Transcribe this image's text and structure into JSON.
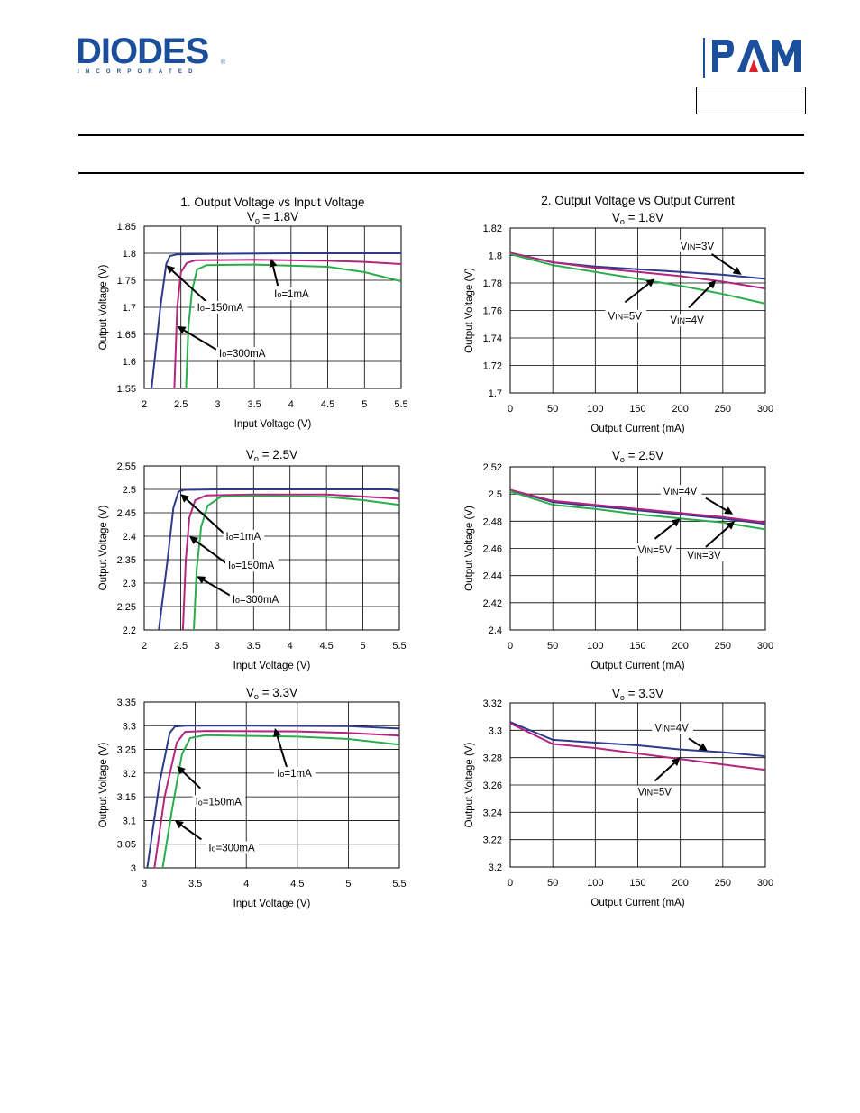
{
  "header": {
    "diodes_logo": "DIODES",
    "diodes_sub": "INCORPORATED",
    "pam_logo": "PAM"
  },
  "colors": {
    "blue": "#2e3a8c",
    "magenta": "#b5257e",
    "green": "#29ad4b",
    "grid": "#000000",
    "logo_blue": "#1b4e9b",
    "logo_red": "#e0202a"
  },
  "chart_data": [
    {
      "id": "c1",
      "type": "line",
      "title": "1. Output Voltage vs Input Voltage",
      "subtitle": "V",
      "subtitle_sub": "o",
      "subtitle_rest": "= 1.8V",
      "xlabel": "Input Voltage (V)",
      "ylabel": "Output Voltage (V)",
      "xlim": [
        2,
        5.5
      ],
      "ylim": [
        1.55,
        1.85
      ],
      "xticks": [
        "2",
        "2.5",
        "3",
        "3.5",
        "4",
        "4.5",
        "5",
        "5.5"
      ],
      "yticks": [
        "1.85",
        "1.8",
        "1.75",
        "1.7",
        "1.65",
        "1.6",
        "1.55"
      ],
      "grid": true,
      "series": [
        {
          "name": "Io=1mA",
          "color": "#2e3a8c",
          "points": [
            [
              2.1,
              1.55
            ],
            [
              2.22,
              1.7
            ],
            [
              2.3,
              1.78
            ],
            [
              2.35,
              1.795
            ],
            [
              2.45,
              1.798
            ],
            [
              3,
              1.799
            ],
            [
              4,
              1.8
            ],
            [
              5.5,
              1.8
            ]
          ]
        },
        {
          "name": "Io=150mA",
          "color": "#b5257e",
          "points": [
            [
              2.41,
              1.55
            ],
            [
              2.45,
              1.7
            ],
            [
              2.5,
              1.765
            ],
            [
              2.58,
              1.782
            ],
            [
              2.7,
              1.787
            ],
            [
              3.5,
              1.788
            ],
            [
              4.5,
              1.786
            ],
            [
              5,
              1.784
            ],
            [
              5.5,
              1.78
            ]
          ]
        },
        {
          "name": "Io=300mA",
          "color": "#29ad4b",
          "points": [
            [
              2.57,
              1.55
            ],
            [
              2.6,
              1.66
            ],
            [
              2.65,
              1.73
            ],
            [
              2.72,
              1.77
            ],
            [
              2.85,
              1.778
            ],
            [
              3.5,
              1.779
            ],
            [
              4.5,
              1.775
            ],
            [
              5,
              1.765
            ],
            [
              5.5,
              1.748
            ]
          ]
        }
      ],
      "annotations": [
        {
          "text": "Io=1mA",
          "x": 3.77,
          "y": 1.725,
          "ax": 3.82,
          "ay": 1.74,
          "hx": 3.73,
          "hy": 1.79
        },
        {
          "text": "Io=150mA",
          "x": 2.72,
          "y": 1.7,
          "ax": 2.85,
          "ay": 1.71,
          "hx": 2.3,
          "hy": 1.778
        },
        {
          "text": "Io=300mA",
          "x": 3.02,
          "y": 1.615,
          "ax": 2.98,
          "ay": 1.622,
          "hx": 2.45,
          "hy": 1.665
        }
      ]
    },
    {
      "id": "c2",
      "type": "line",
      "title": "2. Output Voltage vs Output Current",
      "subtitle": "V",
      "subtitle_sub": "o",
      "subtitle_rest": "= 1.8V",
      "xlabel": "Output Current (mA)",
      "ylabel": "Output Voltage (V)",
      "xlim": [
        0,
        300
      ],
      "ylim": [
        1.7,
        1.82
      ],
      "xticks": [
        "0",
        "50",
        "100",
        "150",
        "200",
        "250",
        "300"
      ],
      "yticks": [
        "1.82",
        "1.8",
        "1.78",
        "1.76",
        "1.74",
        "1.72",
        "1.7"
      ],
      "grid": true,
      "series": [
        {
          "name": "VIN=3V",
          "color": "#2e3a8c",
          "points": [
            [
              0,
              1.802
            ],
            [
              50,
              1.795
            ],
            [
              100,
              1.792
            ],
            [
              150,
              1.79
            ],
            [
              200,
              1.788
            ],
            [
              250,
              1.786
            ],
            [
              300,
              1.783
            ]
          ]
        },
        {
          "name": "VIN=4V",
          "color": "#b5257e",
          "points": [
            [
              0,
              1.802
            ],
            [
              50,
              1.795
            ],
            [
              100,
              1.791
            ],
            [
              150,
              1.788
            ],
            [
              200,
              1.785
            ],
            [
              250,
              1.781
            ],
            [
              300,
              1.776
            ]
          ]
        },
        {
          "name": "VIN=5V",
          "color": "#29ad4b",
          "points": [
            [
              0,
              1.801
            ],
            [
              50,
              1.793
            ],
            [
              100,
              1.788
            ],
            [
              150,
              1.783
            ],
            [
              200,
              1.778
            ],
            [
              250,
              1.772
            ],
            [
              300,
              1.765
            ]
          ]
        }
      ],
      "annotations": [
        {
          "text": "VIN=3V",
          "x": 200,
          "y": 1.807,
          "ax": 237,
          "ay": 1.801,
          "hx": 272,
          "hy": 1.786
        },
        {
          "text": "VIN=5V",
          "x": 115,
          "y": 1.756,
          "ax": 135,
          "ay": 1.766,
          "hx": 170,
          "hy": 1.783
        },
        {
          "text": "VIN=4V",
          "x": 188,
          "y": 1.753,
          "ax": 210,
          "ay": 1.762,
          "hx": 242,
          "hy": 1.782
        }
      ]
    },
    {
      "id": "c3",
      "type": "line",
      "title": "",
      "subtitle": "V",
      "subtitle_sub": "o",
      "subtitle_rest": "= 2.5V",
      "xlabel": "Input Voltage (V)",
      "ylabel": "Output Voltage (V)",
      "xlim": [
        2,
        5.5
      ],
      "ylim": [
        2.2,
        2.55
      ],
      "xticks": [
        "2",
        "2.5",
        "3",
        "3.5",
        "4",
        "4.5",
        "5",
        "5.5"
      ],
      "yticks": [
        "2.55",
        "2.5",
        "2.45",
        "2.4",
        "2.35",
        "2.3",
        "2.25",
        "2.2"
      ],
      "grid": true,
      "series": [
        {
          "name": "Io=1mA",
          "color": "#2e3a8c",
          "points": [
            [
              2.2,
              2.2
            ],
            [
              2.32,
              2.35
            ],
            [
              2.4,
              2.46
            ],
            [
              2.47,
              2.495
            ],
            [
              2.55,
              2.499
            ],
            [
              3,
              2.5
            ],
            [
              4,
              2.5
            ],
            [
              5.4,
              2.5
            ],
            [
              5.5,
              2.495
            ]
          ]
        },
        {
          "name": "Io=150mA",
          "color": "#b5257e",
          "points": [
            [
              2.53,
              2.2
            ],
            [
              2.57,
              2.35
            ],
            [
              2.62,
              2.44
            ],
            [
              2.7,
              2.477
            ],
            [
              2.85,
              2.487
            ],
            [
              3.5,
              2.489
            ],
            [
              4.5,
              2.489
            ],
            [
              5.5,
              2.48
            ]
          ]
        },
        {
          "name": "Io=300mA",
          "color": "#29ad4b",
          "points": [
            [
              2.68,
              2.2
            ],
            [
              2.72,
              2.33
            ],
            [
              2.78,
              2.42
            ],
            [
              2.87,
              2.465
            ],
            [
              3.05,
              2.484
            ],
            [
              3.5,
              2.486
            ],
            [
              4.5,
              2.484
            ],
            [
              5,
              2.477
            ],
            [
              5.5,
              2.467
            ]
          ]
        }
      ],
      "annotations": [
        {
          "text": "Io=1mA",
          "x": 3.12,
          "y": 2.4,
          "ax": 3.1,
          "ay": 2.405,
          "hx": 2.5,
          "hy": 2.49
        },
        {
          "text": "Io=150mA",
          "x": 3.15,
          "y": 2.338,
          "ax": 3.12,
          "ay": 2.343,
          "hx": 2.62,
          "hy": 2.4
        },
        {
          "text": "Io=300mA",
          "x": 3.21,
          "y": 2.265,
          "ax": 3.22,
          "ay": 2.27,
          "hx": 2.72,
          "hy": 2.315
        }
      ]
    },
    {
      "id": "c4",
      "type": "line",
      "title": "",
      "subtitle": "V",
      "subtitle_sub": "o",
      "subtitle_rest": "= 2.5V",
      "xlabel": "Output Current (mA)",
      "ylabel": "Output Voltage (V)",
      "xlim": [
        0,
        300
      ],
      "ylim": [
        2.4,
        2.52
      ],
      "xticks": [
        "0",
        "50",
        "100",
        "150",
        "200",
        "250",
        "300"
      ],
      "yticks": [
        "2.52",
        "2.5",
        "2.48",
        "2.46",
        "2.44",
        "2.42",
        "2.4"
      ],
      "grid": true,
      "series": [
        {
          "name": "VIN=3V",
          "color": "#2e3a8c",
          "points": [
            [
              0,
              2.503
            ],
            [
              50,
              2.494
            ],
            [
              100,
              2.491
            ],
            [
              150,
              2.488
            ],
            [
              200,
              2.485
            ],
            [
              250,
              2.482
            ],
            [
              300,
              2.478
            ]
          ]
        },
        {
          "name": "VIN=4V",
          "color": "#b5257e",
          "points": [
            [
              0,
              2.503
            ],
            [
              50,
              2.495
            ],
            [
              100,
              2.492
            ],
            [
              150,
              2.489
            ],
            [
              200,
              2.486
            ],
            [
              250,
              2.483
            ],
            [
              300,
              2.479
            ]
          ]
        },
        {
          "name": "VIN=5V",
          "color": "#29ad4b",
          "points": [
            [
              0,
              2.502
            ],
            [
              50,
              2.492
            ],
            [
              100,
              2.489
            ],
            [
              150,
              2.485
            ],
            [
              200,
              2.482
            ],
            [
              250,
              2.479
            ],
            [
              300,
              2.474
            ]
          ]
        }
      ],
      "annotations": [
        {
          "text": "VIN=4V",
          "x": 180,
          "y": 2.502,
          "ax": 230,
          "ay": 2.497,
          "hx": 262,
          "hy": 2.485
        },
        {
          "text": "VIN=5V",
          "x": 150,
          "y": 2.459,
          "ax": 170,
          "ay": 2.467,
          "hx": 200,
          "hy": 2.482
        },
        {
          "text": "VIN=3V",
          "x": 208,
          "y": 2.455,
          "ax": 230,
          "ay": 2.461,
          "hx": 264,
          "hy": 2.48
        }
      ]
    },
    {
      "id": "c5",
      "type": "line",
      "title": "",
      "subtitle": "V",
      "subtitle_sub": "o",
      "subtitle_rest": "= 3.3V",
      "xlabel": "Input Voltage (V)",
      "ylabel": "Output Voltage (V)",
      "xlim": [
        3,
        5.5
      ],
      "ylim": [
        3,
        3.35
      ],
      "xticks": [
        "3",
        "3.5",
        "4",
        "4.5",
        "5",
        "5.5"
      ],
      "yticks": [
        "3.35",
        "3.3",
        "3.25",
        "3.2",
        "3.15",
        "3.1",
        "3.05",
        "3"
      ],
      "grid": true,
      "series": [
        {
          "name": "Io=1mA",
          "color": "#2e3a8c",
          "points": [
            [
              3.03,
              3
            ],
            [
              3.15,
              3.18
            ],
            [
              3.25,
              3.285
            ],
            [
              3.3,
              3.298
            ],
            [
              3.4,
              3.3
            ],
            [
              4,
              3.3
            ],
            [
              5,
              3.299
            ],
            [
              5.5,
              3.294
            ]
          ]
        },
        {
          "name": "Io=150mA",
          "color": "#b5257e",
          "points": [
            [
              3.1,
              3
            ],
            [
              3.2,
              3.15
            ],
            [
              3.32,
              3.265
            ],
            [
              3.4,
              3.287
            ],
            [
              3.6,
              3.289
            ],
            [
              4.5,
              3.288
            ],
            [
              5,
              3.285
            ],
            [
              5.5,
              3.279
            ]
          ]
        },
        {
          "name": "Io=300mA",
          "color": "#29ad4b",
          "points": [
            [
              3.18,
              3
            ],
            [
              3.27,
              3.12
            ],
            [
              3.37,
              3.24
            ],
            [
              3.45,
              3.274
            ],
            [
              3.6,
              3.28
            ],
            [
              4.5,
              3.277
            ],
            [
              5,
              3.272
            ],
            [
              5.5,
              3.26
            ]
          ]
        }
      ],
      "annotations": [
        {
          "text": "Io=1mA",
          "x": 4.3,
          "y": 3.2,
          "ax": 4.4,
          "ay": 3.21,
          "hx": 4.28,
          "hy": 3.295
        },
        {
          "text": "Io=150mA",
          "x": 3.5,
          "y": 3.14,
          "ax": 3.55,
          "ay": 3.168,
          "hx": 3.32,
          "hy": 3.215
        },
        {
          "text": "Io=300mA",
          "x": 3.63,
          "y": 3.043,
          "ax": 3.56,
          "ay": 3.06,
          "hx": 3.3,
          "hy": 3.1
        }
      ]
    },
    {
      "id": "c6",
      "type": "line",
      "title": "",
      "subtitle": "V",
      "subtitle_sub": "o",
      "subtitle_rest": "= 3.3V",
      "xlabel": "Output Current (mA)",
      "ylabel": "Output Voltage (V)",
      "xlim": [
        0,
        300
      ],
      "ylim": [
        3.2,
        3.32
      ],
      "xticks": [
        "0",
        "50",
        "100",
        "150",
        "200",
        "250",
        "300"
      ],
      "yticks": [
        "3.32",
        "3.3",
        "3.28",
        "3.26",
        "3.24",
        "3.22",
        "3.2"
      ],
      "grid": true,
      "series": [
        {
          "name": "VIN=4V",
          "color": "#2e3a8c",
          "points": [
            [
              0,
              3.306
            ],
            [
              50,
              3.293
            ],
            [
              100,
              3.291
            ],
            [
              150,
              3.289
            ],
            [
              200,
              3.286
            ],
            [
              250,
              3.284
            ],
            [
              300,
              3.281
            ]
          ]
        },
        {
          "name": "VIN=5V",
          "color": "#b5257e",
          "points": [
            [
              0,
              3.305
            ],
            [
              50,
              3.29
            ],
            [
              100,
              3.287
            ],
            [
              150,
              3.283
            ],
            [
              200,
              3.279
            ],
            [
              250,
              3.275
            ],
            [
              300,
              3.271
            ]
          ]
        }
      ],
      "annotations": [
        {
          "text": "VIN=4V",
          "x": 170,
          "y": 3.302,
          "ax": 210,
          "ay": 3.294,
          "hx": 232,
          "hy": 3.285
        },
        {
          "text": "VIN=5V",
          "x": 150,
          "y": 3.255,
          "ax": 170,
          "ay": 3.263,
          "hx": 200,
          "hy": 3.28
        }
      ]
    }
  ]
}
